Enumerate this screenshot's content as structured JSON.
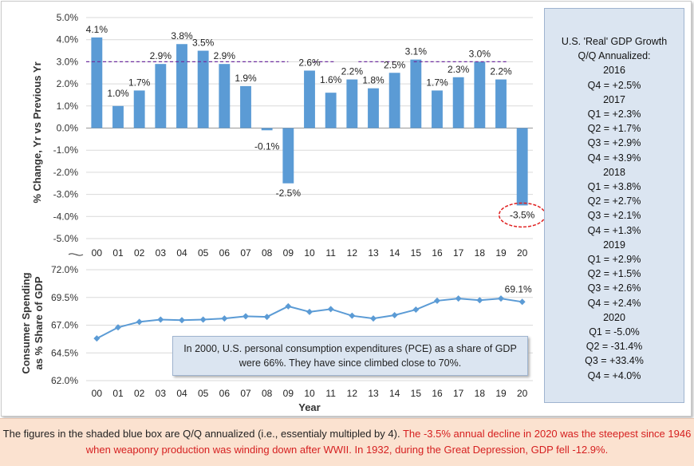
{
  "chart_data": [
    {
      "type": "bar",
      "ylabel": "% Change, Yr vs Previous Yr",
      "ylim": [
        -5.0,
        5.0
      ],
      "yticks": [
        "5.0%",
        "4.0%",
        "3.0%",
        "2.0%",
        "1.0%",
        "0.0%",
        "-1.0%",
        "-2.0%",
        "-3.0%",
        "-4.0%",
        "-5.0%"
      ],
      "categories": [
        "00",
        "01",
        "02",
        "03",
        "04",
        "05",
        "06",
        "07",
        "08",
        "09",
        "10",
        "11",
        "12",
        "13",
        "14",
        "15",
        "16",
        "17",
        "18",
        "19",
        "20"
      ],
      "values": [
        4.1,
        1.0,
        1.7,
        2.9,
        3.8,
        3.5,
        2.9,
        1.9,
        -0.1,
        -2.5,
        2.6,
        1.6,
        2.2,
        1.8,
        2.5,
        3.1,
        1.7,
        2.3,
        3.0,
        2.2,
        -3.5
      ],
      "value_labels": [
        "4.1%",
        "1.0%",
        "1.7%",
        "2.9%",
        "3.8%",
        "3.5%",
        "2.9%",
        "1.9%",
        "-0.1%",
        "-2.5%",
        "2.6%",
        "1.6%",
        "2.2%",
        "1.8%",
        "2.5%",
        "3.1%",
        "1.7%",
        "2.3%",
        "3.0%",
        "2.2%",
        "-3.5%"
      ],
      "reference_line": 3.0,
      "bar_color": "#5b9bd5",
      "reference_color": "#7030a0",
      "highlight_color": "#e02020",
      "highlight_index": 20,
      "grid": true
    },
    {
      "type": "line",
      "ylabel": "Consumer Spending as % Share of GDP",
      "xlabel": "Year",
      "ylim": [
        62.0,
        72.0
      ],
      "yticks": [
        "72.0%",
        "69.5%",
        "67.0%",
        "64.5%",
        "62.0%"
      ],
      "categories": [
        "00",
        "01",
        "02",
        "03",
        "04",
        "05",
        "06",
        "07",
        "08",
        "09",
        "10",
        "11",
        "12",
        "13",
        "14",
        "15",
        "16",
        "17",
        "18",
        "19",
        "20"
      ],
      "values": [
        65.8,
        66.8,
        67.3,
        67.5,
        67.45,
        67.5,
        67.6,
        67.8,
        67.75,
        68.7,
        68.2,
        68.45,
        67.85,
        67.6,
        67.9,
        68.4,
        69.2,
        69.4,
        69.25,
        69.4,
        69.1
      ],
      "end_label": "69.1%",
      "line_color": "#5b9bd5",
      "grid": true
    }
  ],
  "sidebox": {
    "lines": [
      "U.S. 'Real' GDP Growth",
      "Q/Q Annualized:",
      "2016",
      "Q4 = +2.5%",
      "2017",
      "Q1 = +2.3%",
      "Q2 = +1.7%",
      "Q3 = +2.9%",
      "Q4 = +3.9%",
      "2018",
      "Q1 = +3.8%",
      "Q2 = +2.7%",
      "Q3 = +2.1%",
      "Q4 = +1.3%",
      "2019",
      "Q1 = +2.9%",
      "Q2 = +1.5%",
      "Q3 = +2.6%",
      "Q4 = +2.4%",
      "2020",
      "Q1 = -5.0%",
      "Q2 = -31.4%",
      "Q3 = +33.4%",
      "Q4 = +4.0%"
    ]
  },
  "note": {
    "text": "In 2000, U.S. personal consumption expenditures (PCE) as a share of GDP were 66%. They have since climbed close to 70%."
  },
  "footer": {
    "text_black": "The figures in the shaded blue box are Q/Q annualized (i.e., essentialy multipled by 4).",
    "text_red": "The -3.5% annual decline in 2020 was the steepest since 1946 when weaponry production was winding down after WWII. In 1932, during the Great Depression, GDP fell -12.9%."
  }
}
